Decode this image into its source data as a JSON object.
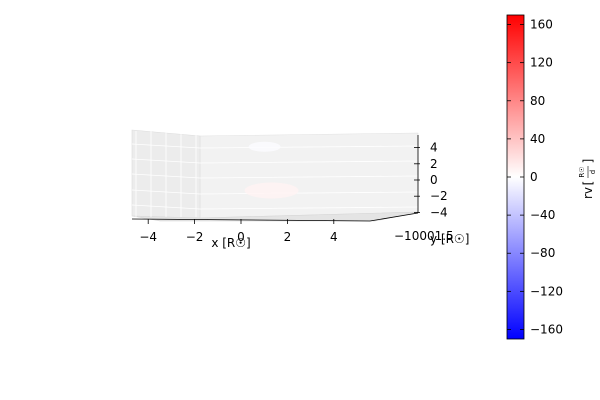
{
  "chart_data": {
    "type": "scatter",
    "projection": "3d",
    "grid": true,
    "axes": {
      "x": {
        "label": "x [R☉]",
        "ticks": [
          "−4",
          "−2",
          "0",
          "2",
          "4"
        ],
        "range": [
          -5,
          5
        ]
      },
      "y": {
        "label": "y [R☉]",
        "ticks": [
          "−1",
          "0",
          "0.5",
          "1.5"
        ],
        "overlapping_tick_text": "−10001.5"
      },
      "z": {
        "ticks": [
          "4",
          "2",
          "0",
          "−2",
          "−4"
        ],
        "range": [
          -5,
          5
        ]
      }
    },
    "colorbar": {
      "label": "rv [R☉/d]",
      "label_main": "rv",
      "label_num": "R☉",
      "label_den": "d",
      "colormap": "bwr",
      "range": [
        -170,
        170
      ],
      "ticks": [
        "160",
        "120",
        "80",
        "40",
        "0",
        "−40",
        "−80",
        "−120",
        "−160"
      ],
      "tick_values": [
        160,
        120,
        80,
        40,
        0,
        -40,
        -80,
        -120,
        -160
      ]
    },
    "series": [
      {
        "x": 0.5,
        "z": 4.1,
        "rv": -2
      },
      {
        "x": 0.8,
        "z": -1.3,
        "rv": 8
      }
    ]
  }
}
